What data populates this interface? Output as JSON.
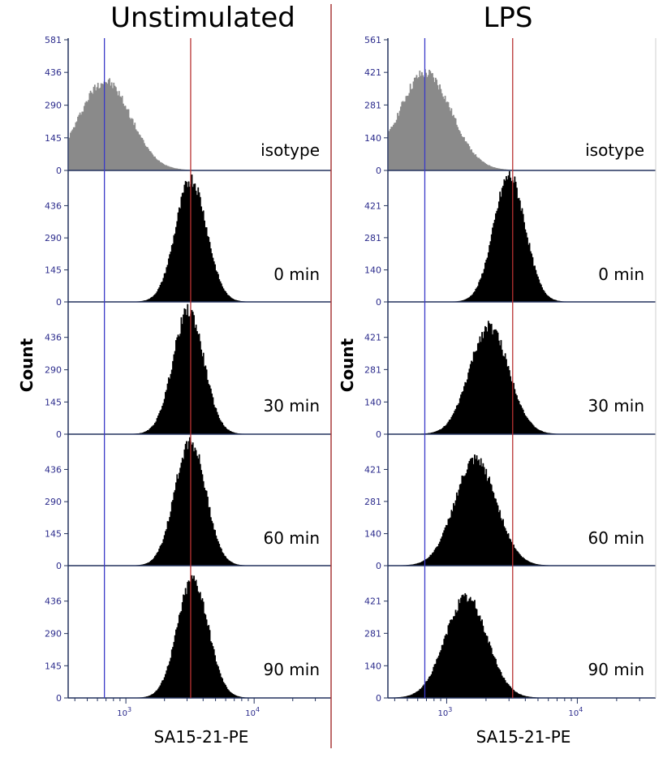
{
  "chart_data": [
    {
      "type": "area",
      "title": "Unstimulated",
      "xlabel": "SA15-21-PE",
      "ylabel": "Count",
      "x_scale": "log",
      "x_ticks": [
        {
          "value": 1000,
          "mantissa": "10",
          "exp": "3"
        },
        {
          "value": 10000,
          "mantissa": "10",
          "exp": "4"
        }
      ],
      "reference_lines": [
        {
          "x": 680,
          "color": "#3a3ac8"
        },
        {
          "x": 3200,
          "color": "#b83232"
        }
      ],
      "tracks": [
        {
          "name": "isotype",
          "y_ticks": [
            "0",
            "145",
            "290",
            "436",
            "581"
          ],
          "ymax": 581,
          "peak_x": 680,
          "peak_count": 400,
          "width_decades": 0.2,
          "fill": "#8a8a8a"
        },
        {
          "name": "0 min",
          "y_ticks": [
            "0",
            "145",
            "290",
            "436"
          ],
          "ymax": 581,
          "peak_x": 3200,
          "peak_count": 560,
          "width_decades": 0.12,
          "fill": "#000000"
        },
        {
          "name": "30 min",
          "y_ticks": [
            "0",
            "145",
            "290",
            "436"
          ],
          "ymax": 581,
          "peak_x": 3050,
          "peak_count": 560,
          "width_decades": 0.12,
          "fill": "#000000"
        },
        {
          "name": "60 min",
          "y_ticks": [
            "0",
            "145",
            "290",
            "436"
          ],
          "ymax": 581,
          "peak_x": 3150,
          "peak_count": 570,
          "width_decades": 0.12,
          "fill": "#000000"
        },
        {
          "name": "90 min",
          "y_ticks": [
            "0",
            "145",
            "290",
            "436"
          ],
          "ymax": 581,
          "peak_x": 3300,
          "peak_count": 540,
          "width_decades": 0.12,
          "fill": "#000000"
        }
      ]
    },
    {
      "type": "area",
      "title": "LPS",
      "xlabel": "SA15-21-PE",
      "ylabel": "Count",
      "x_scale": "log",
      "x_ticks": [
        {
          "value": 1000,
          "mantissa": "10",
          "exp": "3"
        },
        {
          "value": 10000,
          "mantissa": "10",
          "exp": "4"
        }
      ],
      "reference_lines": [
        {
          "x": 680,
          "color": "#3a3ac8"
        },
        {
          "x": 3200,
          "color": "#b83232"
        }
      ],
      "tracks": [
        {
          "name": "isotype",
          "y_ticks": [
            "0",
            "140",
            "281",
            "421",
            "561"
          ],
          "ymax": 561,
          "peak_x": 680,
          "peak_count": 420,
          "width_decades": 0.2,
          "fill": "#8a8a8a"
        },
        {
          "name": "0 min",
          "y_ticks": [
            "0",
            "140",
            "281",
            "421"
          ],
          "ymax": 561,
          "peak_x": 3000,
          "peak_count": 555,
          "width_decades": 0.12,
          "fill": "#000000"
        },
        {
          "name": "30 min",
          "y_ticks": [
            "0",
            "140",
            "281",
            "421"
          ],
          "ymax": 561,
          "peak_x": 2100,
          "peak_count": 470,
          "width_decades": 0.15,
          "fill": "#000000"
        },
        {
          "name": "60 min",
          "y_ticks": [
            "0",
            "140",
            "281",
            "421"
          ],
          "ymax": 561,
          "peak_x": 1650,
          "peak_count": 465,
          "width_decades": 0.16,
          "fill": "#000000"
        },
        {
          "name": "90 min",
          "y_ticks": [
            "0",
            "140",
            "281",
            "421"
          ],
          "ymax": 561,
          "peak_x": 1400,
          "peak_count": 440,
          "width_decades": 0.16,
          "fill": "#000000"
        }
      ]
    }
  ],
  "colors": {
    "axis": "#23325e",
    "tick_text": "#2b2b8c",
    "separator": "#a83a3a"
  }
}
